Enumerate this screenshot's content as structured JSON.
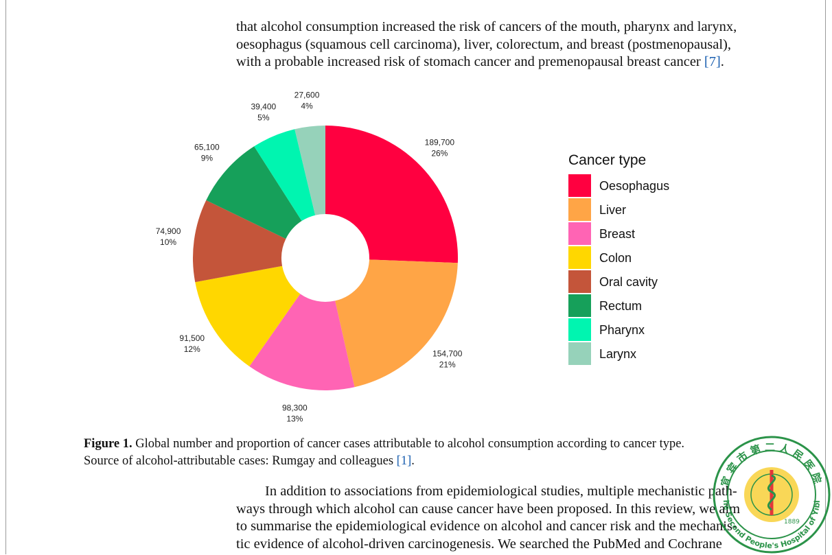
{
  "top_paragraph": {
    "lines": [
      "that alcohol consumption increased the risk of cancers of the mouth, pharynx and larynx,",
      "oesophagus (squamous cell carcinoma), liver, colorectum, and breast (postmenopausal),",
      "with a probable increased risk of stomach cancer and premenopausal breast cancer "
    ],
    "ref": "[7]",
    "end": "."
  },
  "chart_data": {
    "type": "pie",
    "style": "donut",
    "legend_title": "Cancer type",
    "legend_position": "right",
    "slices": [
      {
        "label": "Oesophagus",
        "value": 189700,
        "value_label": "189,700",
        "percent_label": "26%",
        "color": "#FF0040"
      },
      {
        "label": "Liver",
        "value": 154700,
        "value_label": "154,700",
        "percent_label": "21%",
        "color": "#FFA546"
      },
      {
        "label": "Breast",
        "value": 98300,
        "value_label": "98,300",
        "percent_label": "13%",
        "color": "#FF64B4"
      },
      {
        "label": "Colon",
        "value": 91500,
        "value_label": "91,500",
        "percent_label": "12%",
        "color": "#FFD700"
      },
      {
        "label": "Oral cavity",
        "value": 74900,
        "value_label": "74,900",
        "percent_label": "10%",
        "color": "#C4553A"
      },
      {
        "label": "Rectum",
        "value": 65100,
        "value_label": "65,100",
        "percent_label": "9%",
        "color": "#16A05A"
      },
      {
        "label": "Pharynx",
        "value": 39400,
        "value_label": "39,400",
        "percent_label": "5%",
        "color": "#00F5B0"
      },
      {
        "label": "Larynx",
        "value": 27600,
        "value_label": "27,600",
        "percent_label": "4%",
        "color": "#96D2BA"
      }
    ]
  },
  "caption": {
    "label": "Figure 1.",
    "line1": " Global number and proportion of cancer cases attributable to alcohol consumption according to cancer type.",
    "line2_prefix": "Source of alcohol-attributable cases: Rumgay and colleagues ",
    "ref": "[1]",
    "end": "."
  },
  "bottom_paragraph": {
    "lines": [
      "In addition to associations from epidemiological studies, multiple mechanistic path-",
      "ways through which alcohol can cause cancer have been proposed. In this review, we aim",
      "to summarise the epidemiological evidence on alcohol and cancer risk and the mechanis-",
      "tic evidence of alcohol-driven carcinogenesis.  We searched the PubMed and Cochrane"
    ]
  },
  "seal": {
    "text_cn": "宜宾市第二人民医院",
    "text_en": "The Second People's Hospital of Yibin",
    "year": "1889",
    "ring_color": "#1a8a3a",
    "gold_color": "#f2b705"
  }
}
